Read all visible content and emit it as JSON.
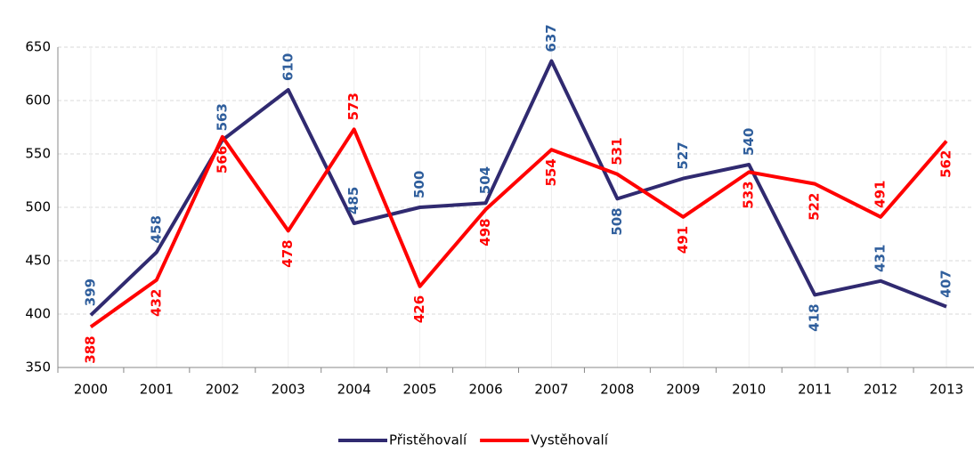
{
  "chart_data": {
    "type": "line",
    "categories": [
      "2000",
      "2001",
      "2002",
      "2003",
      "2004",
      "2005",
      "2006",
      "2007",
      "2008",
      "2009",
      "2010",
      "2011",
      "2012",
      "2013"
    ],
    "series": [
      {
        "name": "Přistěhovalí",
        "color": "#302a70",
        "label_color": "#2f5e9c",
        "values": [
          399,
          458,
          563,
          610,
          485,
          500,
          504,
          637,
          508,
          527,
          540,
          418,
          431,
          407
        ]
      },
      {
        "name": "Vystěhovalí",
        "color": "#ff0000",
        "label_color": "#ff0000",
        "values": [
          388,
          432,
          566,
          478,
          573,
          426,
          498,
          554,
          531,
          491,
          533,
          522,
          491,
          562
        ]
      }
    ],
    "ylim": [
      350,
      650
    ],
    "yticks": [
      350,
      400,
      450,
      500,
      550,
      600,
      650
    ],
    "grid": true,
    "legend": "bottom"
  }
}
